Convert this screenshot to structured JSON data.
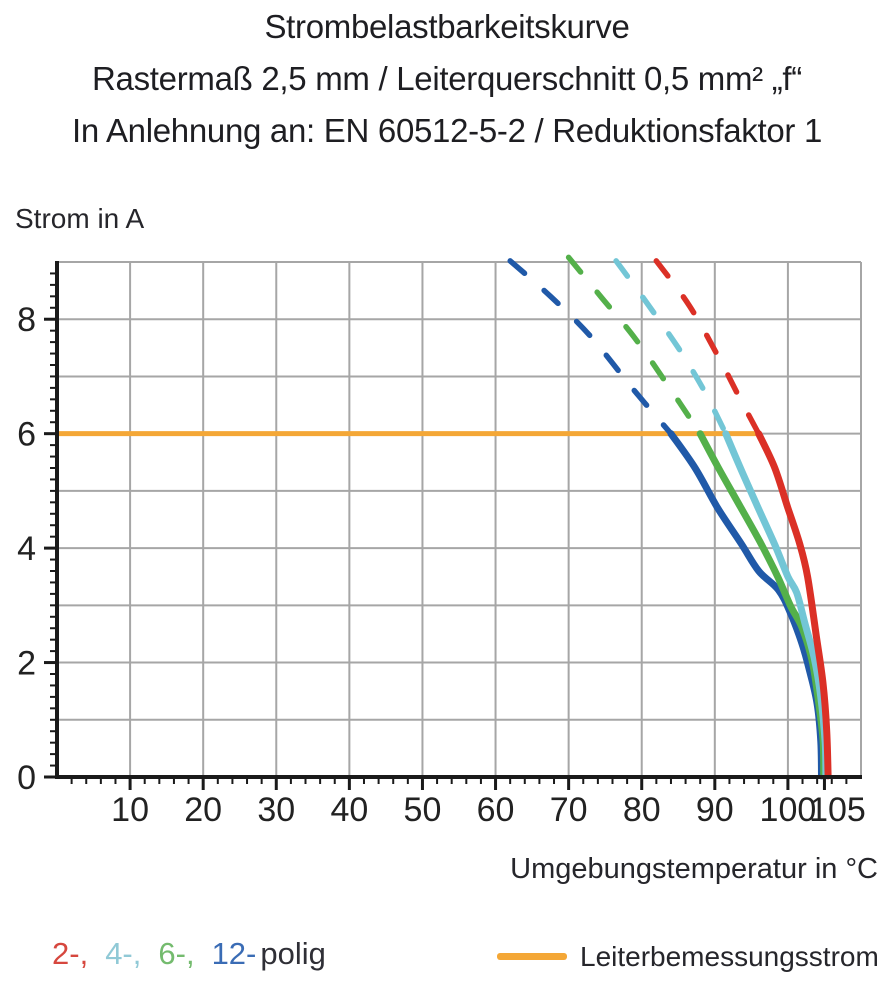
{
  "title": {
    "line1": "Strombelastbarkeitskurve",
    "line2": "Rastermaß 2,5 mm / Leiterquerschnitt 0,5 mm² „f“",
    "line3": "In Anlehnung an: EN 60512-5-2 / Reduktionsfaktor 1"
  },
  "legend": {
    "poles_items": [
      {
        "label": "2-,",
        "color": "#D6473E"
      },
      {
        "label": "4-,",
        "color": "#90C9D6"
      },
      {
        "label": "6-,",
        "color": "#74BB6E"
      },
      {
        "label": "12-",
        "color": "#3A6CB5"
      }
    ],
    "poles_suffix": "polig",
    "rated_label": "Leiterbemessungsstrom",
    "rated_color": "#F4A736"
  },
  "chart_data": {
    "type": "line",
    "title": "Strombelastbarkeitskurve",
    "xlabel": "Umgebungstemperatur in °C",
    "ylabel": "Strom in A",
    "xlim": [
      0,
      110
    ],
    "ylim": [
      0,
      9
    ],
    "x_major_ticks": [
      10,
      20,
      30,
      40,
      50,
      60,
      70,
      80,
      90,
      100,
      105
    ],
    "x_minor_tick_step": 2,
    "y_major_ticks": [
      0,
      2,
      4,
      6,
      8
    ],
    "y_minor_tick_step": 0.2,
    "x_gridline_step": 10,
    "y_gridline_step": 1,
    "grid": true,
    "x_last_tick_label_dx": 13,
    "colors": {
      "grid": "#A6A6A6",
      "axis": "#1A1A1A",
      "tick_label": "#222222"
    },
    "rated_current_line": {
      "label": "Leiterbemessungsstrom",
      "y": 6,
      "x_from": 0,
      "x_to": 96,
      "color": "#F4A736"
    },
    "series": [
      {
        "name": "12-polig",
        "color": "#2059A8",
        "dashed_points": [
          [
            62,
            9.02
          ],
          [
            67.5,
            8.4
          ],
          [
            73,
            7.7
          ],
          [
            78.8,
            6.78
          ],
          [
            84,
            6
          ]
        ],
        "solid_points": [
          [
            84,
            6
          ],
          [
            87.3,
            5.4
          ],
          [
            90.4,
            4.7
          ],
          [
            93.6,
            4.08
          ],
          [
            96,
            3.6
          ],
          [
            98.7,
            3.27
          ],
          [
            100.3,
            2.88
          ],
          [
            101.9,
            2.34
          ],
          [
            103,
            1.84
          ],
          [
            104,
            1.28
          ],
          [
            104.5,
            0.62
          ],
          [
            104.6,
            0.02
          ]
        ]
      },
      {
        "name": "6-polig",
        "color": "#54B04A",
        "dashed_points": [
          [
            70,
            9.08
          ],
          [
            74.5,
            8.38
          ],
          [
            79,
            7.68
          ],
          [
            83.5,
            6.86
          ],
          [
            88,
            6
          ]
        ],
        "solid_points": [
          [
            88,
            6
          ],
          [
            90.5,
            5.4
          ],
          [
            93.6,
            4.7
          ],
          [
            96.3,
            4.08
          ],
          [
            98.6,
            3.5
          ],
          [
            100.4,
            2.98
          ],
          [
            101.9,
            2.62
          ],
          [
            103.3,
            2.04
          ],
          [
            104.1,
            1.4
          ],
          [
            104.8,
            0.66
          ],
          [
            104.9,
            0.02
          ]
        ]
      },
      {
        "name": "4-polig",
        "color": "#73C6D6",
        "dashed_points": [
          [
            76.5,
            9.02
          ],
          [
            80.5,
            8.32
          ],
          [
            85,
            7.5
          ],
          [
            88.5,
            6.76
          ],
          [
            91.5,
            6
          ]
        ],
        "solid_points": [
          [
            91.5,
            6
          ],
          [
            93.5,
            5.4
          ],
          [
            95.8,
            4.74
          ],
          [
            98.2,
            4.06
          ],
          [
            100,
            3.5
          ],
          [
            101.2,
            3.22
          ],
          [
            102.3,
            2.7
          ],
          [
            103.6,
            2.08
          ],
          [
            104.5,
            1.4
          ],
          [
            105.1,
            0.6
          ],
          [
            105.2,
            0.02
          ]
        ]
      },
      {
        "name": "2-polig",
        "color": "#DB3026",
        "dashed_points": [
          [
            82,
            9.02
          ],
          [
            86.5,
            8.24
          ],
          [
            90.5,
            7.34
          ],
          [
            93.5,
            6.6
          ],
          [
            96,
            6
          ]
        ],
        "solid_points": [
          [
            96,
            6
          ],
          [
            98.2,
            5.4
          ],
          [
            100,
            4.7
          ],
          [
            101.6,
            4.08
          ],
          [
            102.7,
            3.5
          ],
          [
            103.9,
            2.45
          ],
          [
            104.8,
            1.64
          ],
          [
            105.3,
            0.84
          ],
          [
            105.5,
            0.02
          ]
        ]
      }
    ]
  }
}
